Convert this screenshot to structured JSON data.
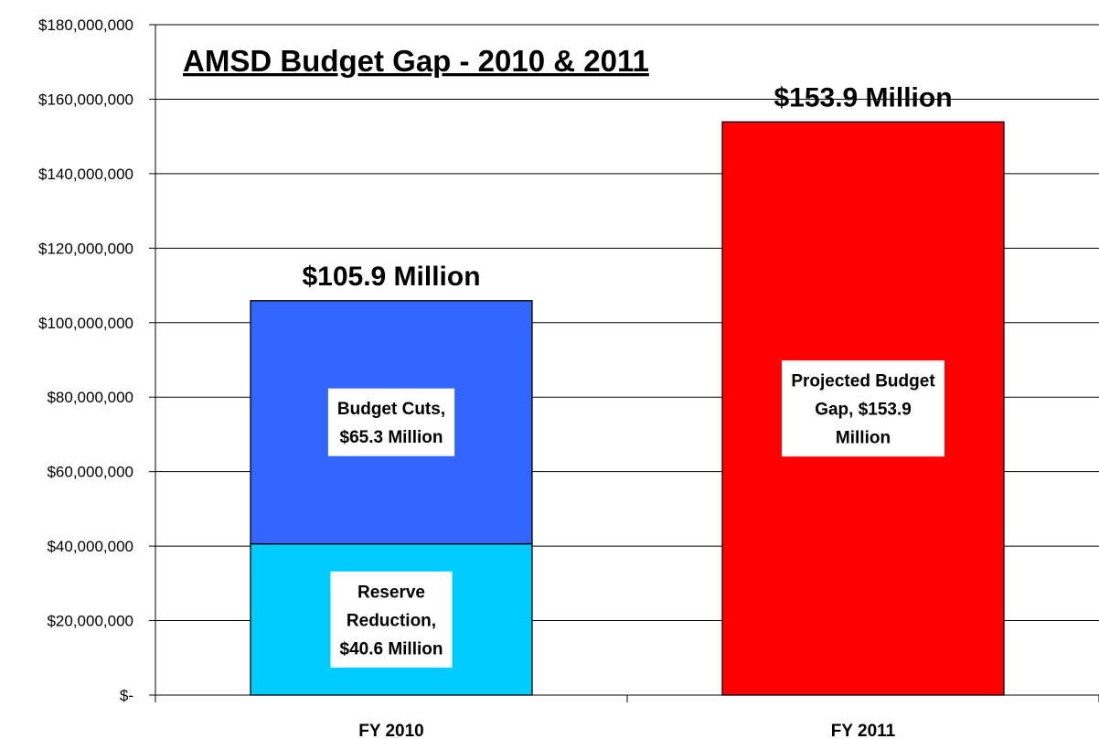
{
  "chart_data": {
    "type": "bar",
    "stacked": true,
    "title": "AMSD Budget Gap - 2010 & 2011",
    "categories": [
      "FY 2010",
      "FY 2011"
    ],
    "ylim": [
      0,
      180000000
    ],
    "yticks": [
      0,
      20000000,
      40000000,
      60000000,
      80000000,
      100000000,
      120000000,
      140000000,
      160000000,
      180000000
    ],
    "ytick_labels": [
      "$-",
      "$20,000,000",
      "$40,000,000",
      "$60,000,000",
      "$80,000,000",
      "$100,000,000",
      "$120,000,000",
      "$140,000,000",
      "$160,000,000",
      "$180,000,000"
    ],
    "grid": true,
    "series": [
      {
        "key": "reserve",
        "values": [
          40600000,
          0
        ],
        "color": "#00CCFF"
      },
      {
        "key": "cuts",
        "values": [
          65300000,
          0
        ],
        "color": "#3366FF"
      },
      {
        "key": "gap",
        "values": [
          0,
          153900000
        ],
        "color": "#FF0000"
      }
    ],
    "segment_labels": [
      {
        "category": 0,
        "series": 0,
        "lines": [
          "Reserve",
          "Reduction,",
          "$40.6 Million"
        ]
      },
      {
        "category": 0,
        "series": 1,
        "lines": [
          "Budget Cuts,",
          "$65.3 Million"
        ]
      },
      {
        "category": 1,
        "series": 2,
        "lines": [
          "Projected Budget",
          "Gap,  $153.9",
          "Million"
        ]
      }
    ],
    "total_labels": [
      "$105.9 Million",
      "$153.9 Million"
    ]
  }
}
